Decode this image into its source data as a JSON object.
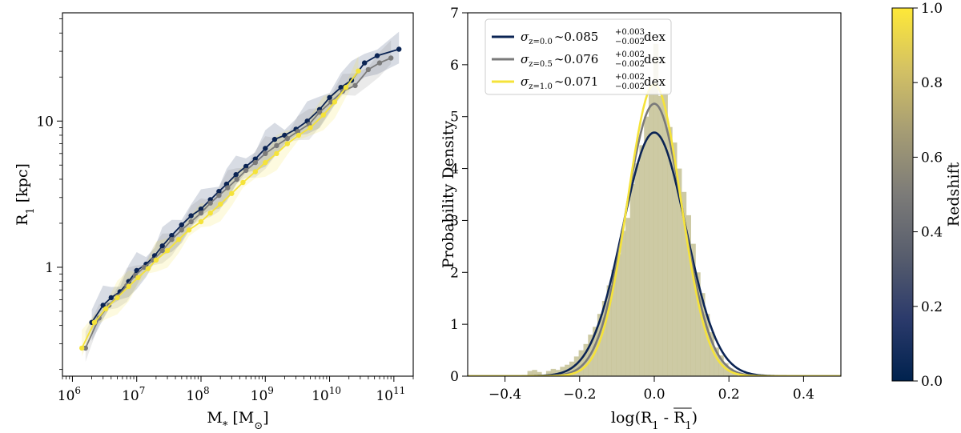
{
  "chart_data": [
    {
      "type": "line",
      "xlabel": "M",
      "xlabel_sub": "*",
      "xlabel_unit_open": " [M",
      "xlabel_unit_sub": "⊙",
      "xlabel_unit_close": "]",
      "ylabel": "R",
      "ylabel_sub": "1",
      "ylabel_unit": " [kpc]",
      "xscale": "log",
      "yscale": "log",
      "xlim": [
        700000,
        200000000000
      ],
      "ylim": [
        0.18,
        55
      ],
      "xticks": [
        {
          "value": 1000000,
          "base": "10",
          "exp": "6"
        },
        {
          "value": 10000000,
          "base": "10",
          "exp": "7"
        },
        {
          "value": 100000000,
          "base": "10",
          "exp": "8"
        },
        {
          "value": 1000000000,
          "base": "10",
          "exp": "9"
        },
        {
          "value": 10000000000,
          "base": "10",
          "exp": "10"
        },
        {
          "value": 100000000000,
          "base": "10",
          "exp": "11"
        }
      ],
      "yticks": [
        {
          "value": 1,
          "label": "1"
        },
        {
          "value": 10,
          "label": "10"
        }
      ],
      "series": [
        {
          "color": "#0b2454",
          "x": [
            2000000,
            3000000,
            4000000,
            5500000,
            7500000,
            10000000,
            14000000,
            19000000,
            25000000,
            35000000,
            50000000,
            70000000,
            100000000,
            140000000,
            190000000,
            250000000,
            350000000,
            500000000,
            700000000,
            1000000000,
            1400000000,
            2000000000,
            3000000000,
            4500000000,
            7000000000,
            10000000000,
            15000000000,
            22000000000,
            35000000000,
            55000000000,
            120000000000
          ],
          "y": [
            0.42,
            0.55,
            0.62,
            0.68,
            0.8,
            0.95,
            1.05,
            1.2,
            1.4,
            1.65,
            1.95,
            2.25,
            2.5,
            2.9,
            3.3,
            3.7,
            4.3,
            4.9,
            5.5,
            6.5,
            7.5,
            8.0,
            8.8,
            10.0,
            12.0,
            14.5,
            17.0,
            19.0,
            25.0,
            28.0,
            31.0
          ]
        },
        {
          "color": "#7a7a7a",
          "x": [
            1600000,
            2600000,
            3700000,
            5000000,
            7000000,
            9500000,
            13000000,
            18000000,
            25000000,
            35000000,
            50000000,
            70000000,
            100000000,
            140000000,
            190000000,
            260000000,
            360000000,
            500000000,
            700000000,
            1000000000,
            1500000000,
            2200000000,
            3200000000,
            4800000000,
            7000000000,
            10500000000,
            16000000000,
            25000000000,
            40000000000,
            60000000000,
            90000000000
          ],
          "y": [
            0.28,
            0.45,
            0.55,
            0.63,
            0.75,
            0.88,
            1.0,
            1.12,
            1.3,
            1.55,
            1.8,
            2.05,
            2.35,
            2.75,
            3.1,
            3.5,
            4.0,
            4.6,
            5.2,
            6.0,
            6.8,
            7.6,
            8.5,
            9.5,
            11.5,
            13.5,
            16.0,
            17.5,
            22.5,
            25.0,
            27.0
          ]
        },
        {
          "color": "#f5e33a",
          "x": [
            1400000,
            2200000,
            3300000,
            5000000,
            7500000,
            10500000,
            15000000,
            20000000,
            30000000,
            45000000,
            65000000,
            100000000,
            140000000,
            200000000,
            300000000,
            450000000,
            700000000,
            1000000000,
            1500000000,
            2200000000,
            3300000000,
            5000000000,
            8000000000,
            12000000000,
            18000000000,
            28000000000
          ],
          "y": [
            0.28,
            0.42,
            0.52,
            0.62,
            0.74,
            0.85,
            0.98,
            1.12,
            1.3,
            1.55,
            1.8,
            2.05,
            2.35,
            2.7,
            3.2,
            3.8,
            4.5,
            5.2,
            6.0,
            7.0,
            8.0,
            9.0,
            11.0,
            13.5,
            17.0,
            22.0
          ]
        }
      ]
    },
    {
      "type": "histogram",
      "xlabel": "log(R",
      "xlabel_sub": "1",
      "xlabel_mid": " - ",
      "xlabel_bar": "R",
      "xlabel_bar_sub": "1",
      "xlabel_close": ")",
      "ylabel": "Probability Density",
      "xlim": [
        -0.5,
        0.5
      ],
      "ylim": [
        0,
        7
      ],
      "xticks": [
        {
          "value": -0.4,
          "label": "−0.4"
        },
        {
          "value": -0.2,
          "label": "−0.2"
        },
        {
          "value": 0.0,
          "label": "0.0"
        },
        {
          "value": 0.2,
          "label": "0.2"
        },
        {
          "value": 0.4,
          "label": "0.4"
        }
      ],
      "yticks": [
        {
          "value": 0,
          "label": "0"
        },
        {
          "value": 1,
          "label": "1"
        },
        {
          "value": 2,
          "label": "2"
        },
        {
          "value": 3,
          "label": "3"
        },
        {
          "value": 4,
          "label": "4"
        },
        {
          "value": 5,
          "label": "5"
        },
        {
          "value": 6,
          "label": "6"
        },
        {
          "value": 7,
          "label": "7"
        }
      ],
      "hist_color": "#c8c49a",
      "bin_width": 0.0125,
      "bins": [
        {
          "x": -0.34,
          "h": 0.1
        },
        {
          "x": -0.3275,
          "h": 0.12
        },
        {
          "x": -0.315,
          "h": 0.08
        },
        {
          "x": -0.29,
          "h": 0.1
        },
        {
          "x": -0.2775,
          "h": 0.14
        },
        {
          "x": -0.265,
          "h": 0.12
        },
        {
          "x": -0.2525,
          "h": 0.18
        },
        {
          "x": -0.24,
          "h": 0.22
        },
        {
          "x": -0.2275,
          "h": 0.28
        },
        {
          "x": -0.215,
          "h": 0.38
        },
        {
          "x": -0.2025,
          "h": 0.5
        },
        {
          "x": -0.19,
          "h": 0.62
        },
        {
          "x": -0.1775,
          "h": 0.8
        },
        {
          "x": -0.165,
          "h": 0.95
        },
        {
          "x": -0.1525,
          "h": 1.2
        },
        {
          "x": -0.14,
          "h": 1.45
        },
        {
          "x": -0.1275,
          "h": 1.75
        },
        {
          "x": -0.115,
          "h": 2.05
        },
        {
          "x": -0.1025,
          "h": 2.35
        },
        {
          "x": -0.09,
          "h": 2.8
        },
        {
          "x": -0.0775,
          "h": 3.05
        },
        {
          "x": -0.065,
          "h": 3.7
        },
        {
          "x": -0.0525,
          "h": 4.1
        },
        {
          "x": -0.04,
          "h": 4.45
        },
        {
          "x": -0.0275,
          "h": 5.0
        },
        {
          "x": -0.015,
          "h": 5.6
        },
        {
          "x": -0.0025,
          "h": 6.4
        },
        {
          "x": 0.01,
          "h": 5.4
        },
        {
          "x": 0.0225,
          "h": 5.45
        },
        {
          "x": 0.035,
          "h": 4.8
        },
        {
          "x": 0.0475,
          "h": 4.5
        },
        {
          "x": 0.06,
          "h": 4.0
        },
        {
          "x": 0.0725,
          "h": 3.55
        },
        {
          "x": 0.085,
          "h": 3.1
        },
        {
          "x": 0.0975,
          "h": 2.55
        },
        {
          "x": 0.11,
          "h": 2.0
        },
        {
          "x": 0.1225,
          "h": 1.6
        },
        {
          "x": 0.135,
          "h": 1.2
        },
        {
          "x": 0.1475,
          "h": 0.85
        },
        {
          "x": 0.16,
          "h": 0.55
        },
        {
          "x": 0.1725,
          "h": 0.4
        },
        {
          "x": 0.185,
          "h": 0.25
        },
        {
          "x": 0.1975,
          "h": 0.15
        },
        {
          "x": 0.21,
          "h": 0.08
        }
      ],
      "series": [
        {
          "color": "#0b2454",
          "mu": 0.0,
          "sigma": 0.085,
          "label_sub": "z=0.0",
          "label_val": "0.085",
          "label_up": "+0.003",
          "label_down": "−0.002"
        },
        {
          "color": "#7a7a7a",
          "mu": 0.0,
          "sigma": 0.076,
          "label_sub": "z=0.5",
          "label_val": "0.076",
          "label_up": "+0.002",
          "label_down": "−0.002"
        },
        {
          "color": "#f5e33a",
          "mu": 0.0,
          "sigma": 0.071,
          "label_sub": "z=1.0",
          "label_val": "0.071",
          "label_up": "+0.002",
          "label_down": "−0.002"
        }
      ],
      "legend_sigma": "σ",
      "legend_tilde": "∼",
      "legend_unit": "dex",
      "legend_position": "top-left"
    }
  ],
  "colorbar": {
    "label": "Redshift",
    "range": [
      0.0,
      1.0
    ],
    "stops": [
      "#00224e",
      "#2b3a6b",
      "#575d6d",
      "#7c7b78",
      "#a59c74",
      "#d3c164",
      "#fee838"
    ],
    "ticks": [
      {
        "value": 0.0,
        "label": "0.0"
      },
      {
        "value": 0.2,
        "label": "0.2"
      },
      {
        "value": 0.4,
        "label": "0.4"
      },
      {
        "value": 0.6,
        "label": "0.6"
      },
      {
        "value": 0.8,
        "label": "0.8"
      },
      {
        "value": 1.0,
        "label": "1.0"
      }
    ]
  }
}
